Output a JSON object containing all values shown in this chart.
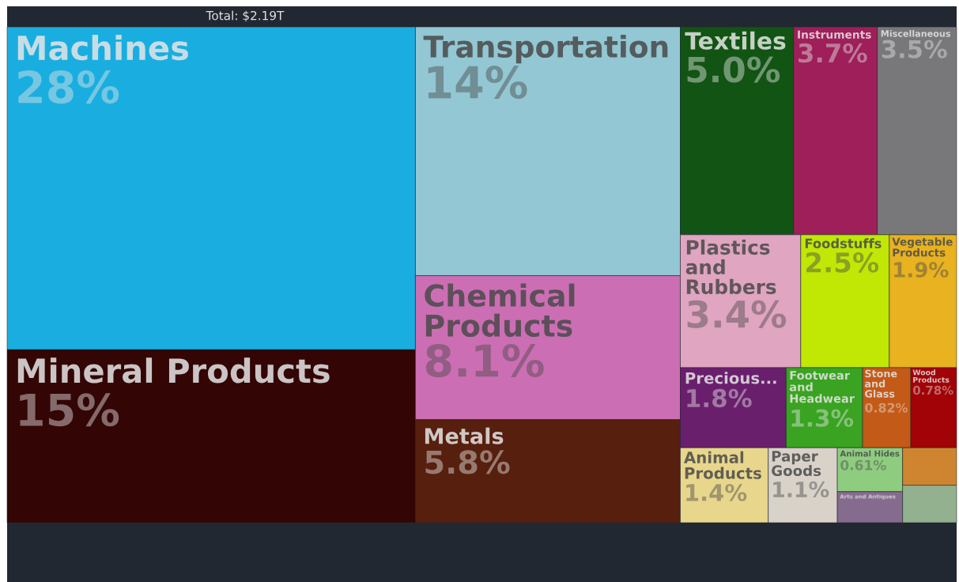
{
  "chart_data": {
    "type": "other",
    "title": "Total: $2.19T",
    "categories": [
      "Machines",
      "Mineral Products",
      "Transportation",
      "Chemical Products",
      "Metals",
      "Textiles",
      "Instruments",
      "Miscellaneous",
      "Plastics and Rubbers",
      "Foodstuffs",
      "Vegetable Products",
      "Precious...",
      "Footwear and Headwear",
      "Stone and Glass",
      "Wood Products",
      "Animal Products",
      "Paper Goods",
      "Animal Hides",
      "Arts and Antiques",
      null,
      null
    ],
    "values": [
      28,
      15,
      14,
      8.1,
      5.8,
      5.0,
      3.7,
      3.5,
      3.4,
      2.5,
      1.9,
      1.8,
      1.3,
      0.82,
      0.78,
      1.4,
      1.1,
      0.61,
      null,
      null,
      null
    ],
    "value_labels": [
      "28%",
      "15%",
      "14%",
      "8.1%",
      "5.8%",
      "5.0%",
      "3.7%",
      "3.5%",
      "3.4%",
      "2.5%",
      "1.9%",
      "1.8%",
      "1.3%",
      "0.82%",
      "0.78%",
      "1.4%",
      "1.1%",
      "0.61%",
      null,
      null,
      null
    ],
    "colors": [
      "#1aaee0",
      "#330505",
      "#92c7d3",
      "#cc6eb3",
      "#561f0e",
      "#115413",
      "#9e1f5a",
      "#78787a",
      "#e0a5c0",
      "#c1e805",
      "#e8b220",
      "#6a1f6d",
      "#3aa322",
      "#c45a17",
      "#a10306",
      "#e8d68d",
      "#d8d2c9",
      "#8ecc7f",
      "#856b8d",
      "#cf8530",
      "#93b08f"
    ]
  }
}
